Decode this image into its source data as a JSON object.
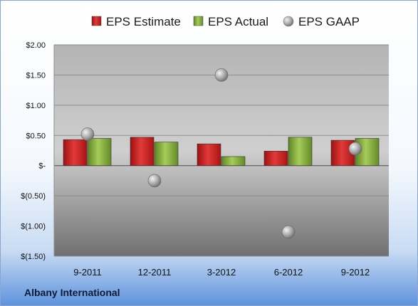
{
  "chart_data": {
    "type": "bar",
    "categories": [
      "9-2011",
      "12-2011",
      "3-2012",
      "6-2012",
      "9-2012"
    ],
    "series": [
      {
        "name": "EPS Estimate",
        "kind": "bar",
        "color": "#cc1f1f",
        "values": [
          0.43,
          0.47,
          0.36,
          0.24,
          0.42
        ]
      },
      {
        "name": "EPS Actual",
        "kind": "bar",
        "color": "#86ad3a",
        "values": [
          0.45,
          0.39,
          0.15,
          0.47,
          0.45
        ]
      },
      {
        "name": "EPS GAAP",
        "kind": "marker",
        "color": "#a9a9a9",
        "values": [
          0.52,
          -0.25,
          1.5,
          -1.1,
          0.28
        ]
      }
    ],
    "yticks": [
      {
        "value": 2.0,
        "label": "$2.00"
      },
      {
        "value": 1.5,
        "label": "$1.50"
      },
      {
        "value": 1.0,
        "label": "$1.00"
      },
      {
        "value": 0.5,
        "label": "$0.50"
      },
      {
        "value": 0.0,
        "label": "$-"
      },
      {
        "value": -0.5,
        "label": "$(0.50)"
      },
      {
        "value": -1.0,
        "label": "$(1.00)"
      },
      {
        "value": -1.5,
        "label": "$(1.50)"
      }
    ],
    "ylim": [
      -1.5,
      2.0
    ],
    "grid": true,
    "legend": "top"
  },
  "footer": {
    "company": "Albany International"
  }
}
